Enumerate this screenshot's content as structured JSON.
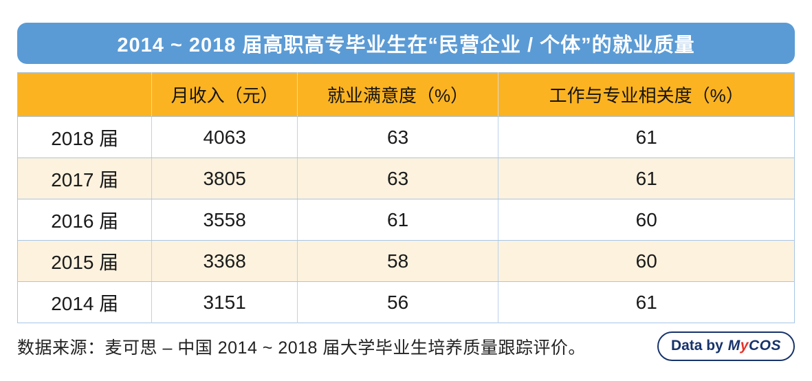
{
  "title": "2014 ~ 2018 届高职高专毕业生在“民营企业 / 个体”的就业质量",
  "table": {
    "headers": [
      "",
      "月收入（元）",
      "就业满意度（%）",
      "工作与专业相关度（%）"
    ],
    "rows": [
      {
        "label": "2018 届",
        "income": "4063",
        "satisfaction": "63",
        "relevance": "61"
      },
      {
        "label": "2017 届",
        "income": "3805",
        "satisfaction": "63",
        "relevance": "61"
      },
      {
        "label": "2016 届",
        "income": "3558",
        "satisfaction": "61",
        "relevance": "60"
      },
      {
        "label": "2015 届",
        "income": "3368",
        "satisfaction": "58",
        "relevance": "60"
      },
      {
        "label": "2014 届",
        "income": "3151",
        "satisfaction": "56",
        "relevance": "61"
      }
    ]
  },
  "footer": {
    "source": "数据来源：麦可思 – 中国 2014 ~ 2018 届大学毕业生培养质量跟踪评价。",
    "badge": {
      "prefix": "Data by",
      "logo_m": "M",
      "logo_y": "y",
      "logo_cos": "COS"
    }
  },
  "colors": {
    "banner_blue": "#5B9BD5",
    "header_yellow": "#FBB322",
    "stripe_cream": "#FCF2DE",
    "border_blue": "#A6C6E6",
    "navy": "#17336B",
    "logo_red": "#E63229"
  },
  "chart_data": {
    "type": "table",
    "title": "2014 ~ 2018 届高职高专毕业生在“民营企业 / 个体”的就业质量",
    "categories": [
      "2018 届",
      "2017 届",
      "2016 届",
      "2015 届",
      "2014 届"
    ],
    "series": [
      {
        "name": "月收入（元）",
        "values": [
          4063,
          3805,
          3558,
          3368,
          3151
        ]
      },
      {
        "name": "就业满意度（%）",
        "values": [
          63,
          63,
          61,
          58,
          56
        ]
      },
      {
        "name": "工作与专业相关度（%）",
        "values": [
          61,
          61,
          60,
          60,
          61
        ]
      }
    ],
    "source": "数据来源：麦可思 – 中国 2014 ~ 2018 届大学毕业生培养质量跟踪评价。"
  }
}
